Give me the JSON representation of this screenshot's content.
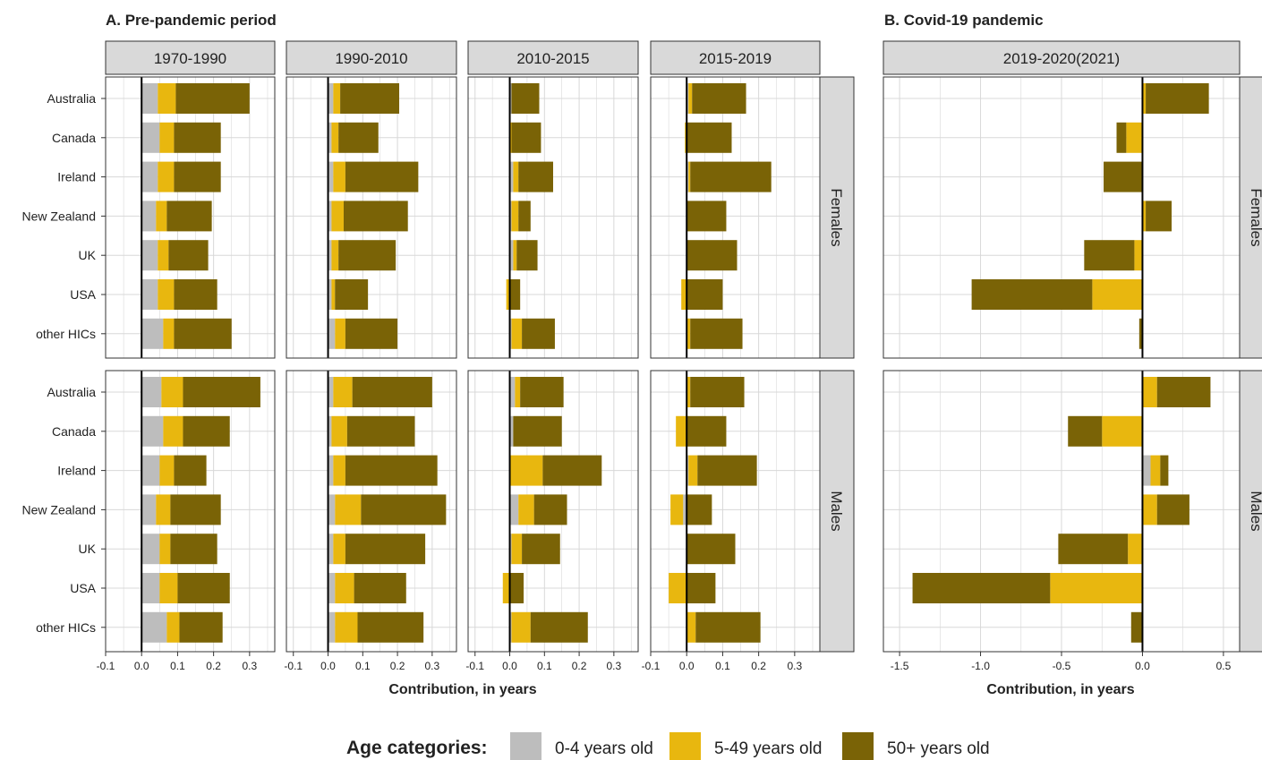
{
  "panel_titles": [
    "A. Pre-pandemic period",
    "B. Covid-19 pandemic"
  ],
  "colors": {
    "age_0_4": "#BDBDBD",
    "age_5_49": "#E8B70F",
    "age_50_plus": "#7A6306",
    "strip": "#D9D9D9",
    "grid": "#D8D8D8"
  },
  "chart_data": {
    "type": "bar",
    "orientation": "horizontal",
    "stacked": true,
    "countries": [
      "Australia",
      "Canada",
      "Ireland",
      "New Zealand",
      "UK",
      "USA",
      "other HICs"
    ],
    "sexes": [
      "Females",
      "Males"
    ],
    "age_categories": [
      "0-4 years old",
      "5-49 years old",
      "50+ years old"
    ],
    "legend_title": "Age categories:",
    "legend_position": "bottom",
    "xlabel": "Contribution, in years",
    "grid": true,
    "periods": [
      {
        "label": "1970-1990",
        "group": "A",
        "xlim": [
          -0.1,
          0.37
        ],
        "ticks": [
          -0.1,
          0.0,
          0.1,
          0.2,
          0.3
        ],
        "tick_labels": [
          "-0.1",
          "0.0",
          "0.1",
          "0.2",
          "0.3"
        ],
        "values": {
          "Females": [
            [
              0.045,
              0.05,
              0.205
            ],
            [
              0.05,
              0.04,
              0.13
            ],
            [
              0.045,
              0.045,
              0.13
            ],
            [
              0.04,
              0.03,
              0.125
            ],
            [
              0.045,
              0.03,
              0.11
            ],
            [
              0.045,
              0.045,
              0.12
            ],
            [
              0.06,
              0.03,
              0.16
            ]
          ],
          "Males": [
            [
              0.055,
              0.06,
              0.215
            ],
            [
              0.06,
              0.055,
              0.13
            ],
            [
              0.05,
              0.04,
              0.09
            ],
            [
              0.04,
              0.04,
              0.14
            ],
            [
              0.05,
              0.03,
              0.13
            ],
            [
              0.05,
              0.05,
              0.145
            ],
            [
              0.07,
              0.035,
              0.12
            ]
          ]
        }
      },
      {
        "label": "1990-2010",
        "group": "A",
        "xlim": [
          -0.12,
          0.37
        ],
        "ticks": [
          -0.1,
          0.0,
          0.1,
          0.2,
          0.3
        ],
        "tick_labels": [
          "-0.1",
          "0.0",
          "0.1",
          "0.2",
          "0.3"
        ],
        "values": {
          "Females": [
            [
              0.015,
              0.02,
              0.17
            ],
            [
              0.01,
              0.02,
              0.115
            ],
            [
              0.015,
              0.035,
              0.21
            ],
            [
              0.01,
              0.035,
              0.185
            ],
            [
              0.01,
              0.02,
              0.165
            ],
            [
              0.01,
              0.01,
              0.095
            ],
            [
              0.02,
              0.03,
              0.15
            ]
          ],
          "Males": [
            [
              0.015,
              0.055,
              0.23
            ],
            [
              0.01,
              0.045,
              0.195
            ],
            [
              0.015,
              0.035,
              0.265
            ],
            [
              0.02,
              0.075,
              0.245
            ],
            [
              0.015,
              0.035,
              0.23
            ],
            [
              0.02,
              0.055,
              0.15
            ],
            [
              0.02,
              0.065,
              0.19
            ]
          ]
        }
      },
      {
        "label": "2010-2015",
        "group": "A",
        "xlim": [
          -0.12,
          0.37
        ],
        "ticks": [
          -0.1,
          0.0,
          0.1,
          0.2,
          0.3
        ],
        "tick_labels": [
          "-0.1",
          "0.0",
          "0.1",
          "0.2",
          "0.3"
        ],
        "values": {
          "Females": [
            [
              0.005,
              0.0,
              0.08
            ],
            [
              0.0,
              0.005,
              0.085
            ],
            [
              0.01,
              0.015,
              0.1
            ],
            [
              0.005,
              0.02,
              0.035
            ],
            [
              0.01,
              0.01,
              0.06
            ],
            [
              0.0,
              -0.01,
              0.03
            ],
            [
              0.005,
              0.03,
              0.095
            ]
          ],
          "Males": [
            [
              0.015,
              0.015,
              0.125
            ],
            [
              0.01,
              0.0,
              0.14
            ],
            [
              0.0,
              0.095,
              0.17
            ],
            [
              0.025,
              0.045,
              0.095
            ],
            [
              0.005,
              0.03,
              0.11
            ],
            [
              0.0,
              -0.02,
              0.04
            ],
            [
              0.005,
              0.055,
              0.165
            ]
          ]
        }
      },
      {
        "label": "2015-2019",
        "group": "A",
        "xlim": [
          -0.1,
          0.37
        ],
        "ticks": [
          -0.1,
          0.0,
          0.1,
          0.2,
          0.3
        ],
        "tick_labels": [
          "-0.1",
          "0.0",
          "0.1",
          "0.2",
          "0.3"
        ],
        "values": {
          "Females": [
            [
              0.005,
              0.01,
              0.15
            ],
            [
              0.0,
              -0.005,
              0.125
            ],
            [
              0.005,
              0.005,
              0.225
            ],
            [
              0.0,
              0.0,
              0.11
            ],
            [
              0.0,
              0.0,
              0.14
            ],
            [
              0.0,
              -0.015,
              0.1
            ],
            [
              0.0,
              0.01,
              0.145
            ]
          ],
          "Males": [
            [
              0.0,
              0.01,
              0.15
            ],
            [
              0.0,
              -0.03,
              0.11
            ],
            [
              0.005,
              0.025,
              0.165
            ],
            [
              -0.01,
              -0.035,
              0.07
            ],
            [
              0.0,
              0.0,
              0.135
            ],
            [
              0.0,
              -0.05,
              0.08
            ],
            [
              0.0,
              0.025,
              0.18
            ]
          ]
        }
      },
      {
        "label": "2019-2020(2021)",
        "group": "B",
        "xlim": [
          -1.6,
          0.6
        ],
        "ticks": [
          -1.5,
          -1.0,
          -0.5,
          0.0,
          0.5
        ],
        "tick_labels": [
          "-1.5",
          "-1.0",
          "-0.5",
          "0.0",
          "0.5"
        ],
        "values": {
          "Females": [
            [
              0.0,
              0.02,
              0.39
            ],
            [
              0.0,
              -0.1,
              -0.06
            ],
            [
              0.0,
              0.0,
              -0.24
            ],
            [
              0.0,
              0.02,
              0.16
            ],
            [
              0.0,
              -0.05,
              -0.31
            ],
            [
              0.0,
              -0.31,
              -0.745
            ],
            [
              0.0,
              0.0,
              -0.02
            ]
          ],
          "Males": [
            [
              0.0,
              0.09,
              0.33
            ],
            [
              0.0,
              -0.25,
              -0.21
            ],
            [
              0.05,
              0.06,
              0.05
            ],
            [
              0.0,
              0.09,
              0.2
            ],
            [
              0.0,
              -0.09,
              -0.43
            ],
            [
              0.0,
              -0.57,
              -0.85
            ],
            [
              0.0,
              0.0,
              -0.07
            ]
          ]
        }
      }
    ]
  }
}
